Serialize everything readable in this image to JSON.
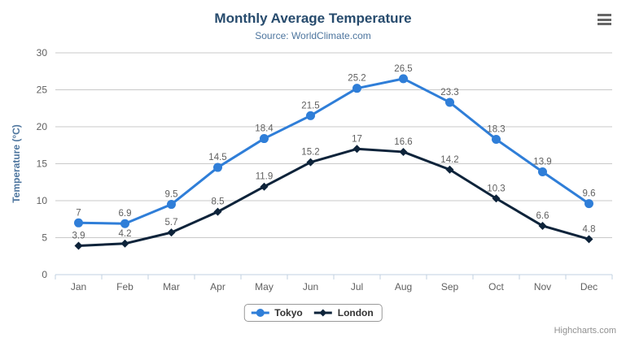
{
  "chart_data": {
    "type": "line",
    "title": "Monthly Average Temperature",
    "subtitle": "Source: WorldClimate.com",
    "categories": [
      "Jan",
      "Feb",
      "Mar",
      "Apr",
      "May",
      "Jun",
      "Jul",
      "Aug",
      "Sep",
      "Oct",
      "Nov",
      "Dec"
    ],
    "series": [
      {
        "name": "Tokyo",
        "marker": "circle",
        "color": "#2f7ed8",
        "values": [
          7,
          6.9,
          9.5,
          14.5,
          18.4,
          21.5,
          25.2,
          26.5,
          23.3,
          18.3,
          13.9,
          9.6
        ]
      },
      {
        "name": "London",
        "marker": "diamond",
        "color": "#0d233a",
        "values": [
          3.9,
          4.2,
          5.7,
          8.5,
          11.9,
          15.2,
          17,
          16.6,
          14.2,
          10.3,
          6.6,
          4.8
        ]
      }
    ],
    "xlabel": "",
    "ylabel": "Temperature (°C)",
    "ylim": [
      0,
      30
    ],
    "yticks": [
      0,
      5,
      10,
      15,
      20,
      25,
      30
    ],
    "grid": true,
    "data_labels": true,
    "legend_position": "bottom-center",
    "theme": {
      "title_color": "#274b6d",
      "subtitle_color": "#4d759e",
      "ylabel_color": "#4d759e",
      "axis_label_color": "#606060",
      "data_label_color": "#606060",
      "grid_color": "#c9c9c9",
      "axis_line_color": "#c0d0e0",
      "tick_color": "#c0d0e0",
      "legend_border_color": "#999999",
      "legend_text_color": "#333333",
      "background": "#ffffff"
    }
  },
  "menu": {
    "icon": "hamburger-menu-icon"
  },
  "credits": {
    "text": "Highcharts.com"
  }
}
